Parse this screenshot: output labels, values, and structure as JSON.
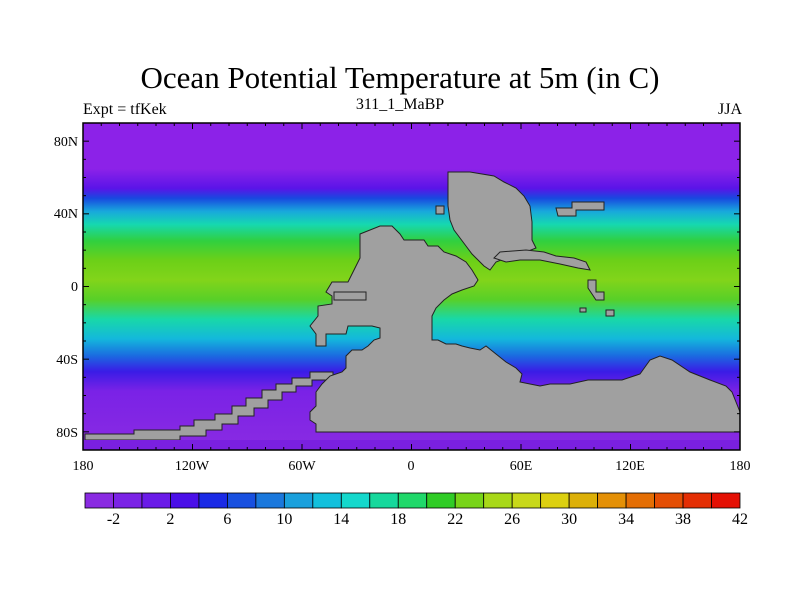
{
  "title": "Ocean Potential Temperature at 5m (in C)",
  "left_string": "Expt = tfKek",
  "center_string": "311_1_MaBP",
  "right_string": "JJA",
  "lat_labels": [
    "80N",
    "40N",
    "0",
    "40S",
    "80S"
  ],
  "lon_labels": [
    "180",
    "120W",
    "60W",
    "0",
    "60E",
    "120E",
    "180"
  ],
  "colorbar": {
    "labels": [
      "-2",
      "2",
      "6",
      "10",
      "14",
      "18",
      "22",
      "26",
      "30",
      "34",
      "38",
      "42"
    ],
    "colors": [
      "#8a2be2",
      "#7b23e6",
      "#6a1be8",
      "#4a0fe8",
      "#1a2ae6",
      "#1850e0",
      "#1a78dc",
      "#1aa0dc",
      "#12c0dc",
      "#14d8cc",
      "#16d89c",
      "#20d86a",
      "#30cc26",
      "#78d418",
      "#a8d818",
      "#c8d81a",
      "#dcd010",
      "#dcb008",
      "#e49006",
      "#e46e04",
      "#e44e04",
      "#e42e04",
      "#e41004"
    ]
  },
  "land_color": "#a0a0a0"
}
